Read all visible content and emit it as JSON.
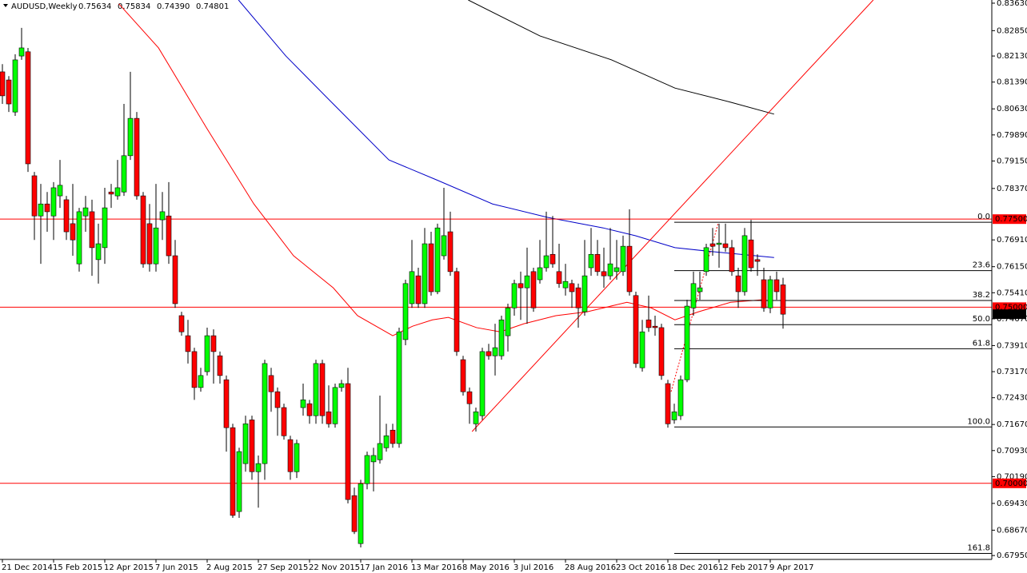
{
  "chart_data": {
    "type": "candlestick",
    "symbol": "AUDUSD,Weekly",
    "last_labels": [
      "0.75634",
      "0.75834",
      "0.74390",
      "0.74801"
    ],
    "open": [
      0.8168,
      0.8145,
      0.8054,
      0.8213,
      0.8225,
      0.7873,
      0.7759,
      0.7793,
      0.7759,
      0.7816,
      0.7805,
      0.7737,
      0.7623,
      0.7759,
      0.7771,
      0.7635,
      0.7669,
      0.7827,
      0.7816,
      0.7827,
      0.793,
      0.8036,
      0.7816,
      0.7737,
      0.7623,
      0.7748,
      0.7759,
      0.7646,
      0.7476,
      0.7419,
      0.7374,
      0.7272,
      0.7317,
      0.7419,
      0.7362,
      0.7294,
      0.7158,
      0.692,
      0.7056,
      0.718,
      0.7033,
      0.7056,
      0.7306,
      0.726,
      0.7215,
      0.7124,
      0.7033,
      0.7215,
      0.7226,
      0.7192,
      0.734,
      0.7203,
      0.7169,
      0.7272,
      0.7283,
      0.6965,
      0.6829,
      0.6999,
      0.7061,
      0.7067,
      0.7101,
      0.7151,
      0.7113,
      0.7408,
      0.751,
      0.7589,
      0.751,
      0.768,
      0.7544,
      0.7646,
      0.7714,
      0.7601,
      0.7351,
      0.726,
      0.7169,
      0.7192,
      0.7374,
      0.7362,
      0.7362,
      0.7419,
      0.7498,
      0.7567,
      0.7555,
      0.7601,
      0.7578,
      0.7612,
      0.765,
      0.7601,
      0.7555,
      0.7567,
      0.7555,
      0.7487,
      0.7612,
      0.765,
      0.7601,
      0.7589,
      0.7601,
      0.7601,
      0.7673,
      0.7533,
      0.7328,
      0.7464,
      0.7446,
      0.7442,
      0.7283,
      0.718,
      0.7192,
      0.7294,
      0.7498,
      0.7544,
      0.7601,
      0.768,
      0.7678,
      0.768,
      0.7669,
      0.7589,
      0.7544,
      0.7691,
      0.7635,
      0.7578,
      0.7498,
      0.7578,
      0.75634
    ],
    "high": [
      0.819,
      0.8156,
      0.8218,
      0.8293,
      0.8236,
      0.7884,
      0.785,
      0.7827,
      0.7855,
      0.7918,
      0.7816,
      0.785,
      0.7782,
      0.7816,
      0.7805,
      0.7737,
      0.7839,
      0.785,
      0.7918,
      0.8077,
      0.8168,
      0.8054,
      0.7827,
      0.7793,
      0.785,
      0.7827,
      0.7855,
      0.7691,
      0.7487,
      0.7464,
      0.7385,
      0.7328,
      0.7442,
      0.7437,
      0.7374,
      0.7306,
      0.7169,
      0.7101,
      0.7192,
      0.7192,
      0.7079,
      0.7351,
      0.7328,
      0.7272,
      0.7226,
      0.7135,
      0.7124,
      0.7283,
      0.7237,
      0.7351,
      0.7351,
      0.7278,
      0.7283,
      0.7294,
      0.7328,
      0.6988,
      0.701,
      0.709,
      0.7101,
      0.7249,
      0.7169,
      0.7169,
      0.7442,
      0.7578,
      0.7691,
      0.7612,
      0.7725,
      0.7714,
      0.7737,
      0.7839,
      0.7771,
      0.7612,
      0.7362,
      0.7272,
      0.7215,
      0.7385,
      0.7396,
      0.7453,
      0.7476,
      0.751,
      0.7578,
      0.7601,
      0.7669,
      0.7612,
      0.7691,
      0.7771,
      0.7759,
      0.768,
      0.7623,
      0.7578,
      0.7567,
      0.7691,
      0.7725,
      0.7691,
      0.7669,
      0.7725,
      0.7691,
      0.7703,
      0.7778,
      0.7544,
      0.7464,
      0.7533,
      0.7476,
      0.7453,
      0.7294,
      0.7226,
      0.7306,
      0.7521,
      0.7601,
      0.7601,
      0.768,
      0.7725,
      0.7737,
      0.7737,
      0.7691,
      0.7612,
      0.7725,
      0.7748,
      0.765,
      0.7612,
      0.7589,
      0.7601,
      0.75834
    ],
    "low": [
      0.8077,
      0.8054,
      0.8043,
      0.8202,
      0.7884,
      0.7691,
      0.7623,
      0.7714,
      0.7691,
      0.7782,
      0.7691,
      0.7646,
      0.7601,
      0.7714,
      0.7589,
      0.7567,
      0.7623,
      0.7782,
      0.7805,
      0.7816,
      0.7918,
      0.7805,
      0.7612,
      0.7601,
      0.7601,
      0.7691,
      0.7623,
      0.7498,
      0.7419,
      0.734,
      0.7237,
      0.726,
      0.7306,
      0.7283,
      0.7283,
      0.709,
      0.6902,
      0.6902,
      0.7033,
      0.701,
      0.6931,
      0.701,
      0.7203,
      0.7135,
      0.7124,
      0.701,
      0.7015,
      0.7192,
      0.7169,
      0.7169,
      0.7169,
      0.7158,
      0.7158,
      0.726,
      0.6943,
      0.6856,
      0.6818,
      0.6983,
      0.6977,
      0.7056,
      0.709,
      0.7101,
      0.7101,
      0.7392,
      0.7498,
      0.7498,
      0.7498,
      0.7533,
      0.7537,
      0.7635,
      0.7589,
      0.7362,
      0.7249,
      0.7169,
      0.7147,
      0.718,
      0.7351,
      0.7306,
      0.7351,
      0.7374,
      0.7476,
      0.7464,
      0.7453,
      0.7487,
      0.7567,
      0.7601,
      0.7612,
      0.7555,
      0.7533,
      0.7498,
      0.7442,
      0.7476,
      0.7589,
      0.7589,
      0.7555,
      0.7578,
      0.7578,
      0.7589,
      0.7533,
      0.7328,
      0.7317,
      0.743,
      0.7419,
      0.7294,
      0.7158,
      0.7169,
      0.718,
      0.7287,
      0.7476,
      0.7521,
      0.7589,
      0.7646,
      0.7612,
      0.7657,
      0.7589,
      0.7498,
      0.7533,
      0.7601,
      0.7589,
      0.7487,
      0.7483,
      0.7521,
      0.7439
    ],
    "close": [
      0.81,
      0.8077,
      0.8202,
      0.8236,
      0.7907,
      0.7759,
      0.7793,
      0.7771,
      0.7839,
      0.7846,
      0.7714,
      0.7691,
      0.7771,
      0.7782,
      0.7669,
      0.768,
      0.7782,
      0.7821,
      0.7839,
      0.793,
      0.8036,
      0.7816,
      0.7623,
      0.7623,
      0.7725,
      0.7771,
      0.7646,
      0.751,
      0.743,
      0.7374,
      0.7272,
      0.7306,
      0.7419,
      0.7374,
      0.7306,
      0.7158,
      0.6909,
      0.709,
      0.7169,
      0.7033,
      0.7056,
      0.734,
      0.726,
      0.7215,
      0.7135,
      0.7033,
      0.7113,
      0.7237,
      0.7192,
      0.734,
      0.7192,
      0.7169,
      0.7272,
      0.7283,
      0.6954,
      0.6863,
      0.6999,
      0.7079,
      0.7079,
      0.7113,
      0.7135,
      0.7113,
      0.743,
      0.7567,
      0.7601,
      0.751,
      0.768,
      0.7544,
      0.7725,
      0.7703,
      0.7601,
      0.7374,
      0.726,
      0.7226,
      0.7203,
      0.7374,
      0.7362,
      0.7385,
      0.7464,
      0.7498,
      0.7567,
      0.7555,
      0.7589,
      0.7498,
      0.7612,
      0.7646,
      0.7623,
      0.7567,
      0.7573,
      0.7544,
      0.7498,
      0.7589,
      0.765,
      0.7601,
      0.7589,
      0.7623,
      0.7612,
      0.7673,
      0.7544,
      0.734,
      0.743,
      0.7442,
      0.7442,
      0.7306,
      0.7169,
      0.7203,
      0.7294,
      0.7503,
      0.7567,
      0.7555,
      0.7669,
      0.7673,
      0.7682,
      0.7669,
      0.7601,
      0.7544,
      0.7703,
      0.7612,
      0.763,
      0.7498,
      0.7578,
      0.7544,
      0.74801
    ],
    "up_color": "#00ff00",
    "down_color": "#ff0000",
    "ylim": [
      0.6784,
      0.8372
    ],
    "yticks": [
      {
        "value": 0.8363,
        "label": "0.83630"
      },
      {
        "value": 0.8285,
        "label": "0.82850"
      },
      {
        "value": 0.8213,
        "label": "0.82130"
      },
      {
        "value": 0.8139,
        "label": "0.81390"
      },
      {
        "value": 0.8063,
        "label": "0.80630"
      },
      {
        "value": 0.7989,
        "label": "0.79890"
      },
      {
        "value": 0.7915,
        "label": "0.79150"
      },
      {
        "value": 0.7837,
        "label": "0.78370"
      },
      {
        "value": 0.7691,
        "label": "0.76910"
      },
      {
        "value": 0.7615,
        "label": "0.76150"
      },
      {
        "value": 0.7541,
        "label": "0.75410"
      },
      {
        "value": 0.7467,
        "label": "0.74670"
      },
      {
        "value": 0.7391,
        "label": "0.73910"
      },
      {
        "value": 0.7317,
        "label": "0.73170"
      },
      {
        "value": 0.7243,
        "label": "0.72430"
      },
      {
        "value": 0.7167,
        "label": "0.71670"
      },
      {
        "value": 0.7093,
        "label": "0.70930"
      },
      {
        "value": 0.7019,
        "label": "0.70190"
      },
      {
        "value": 0.6943,
        "label": "0.69430"
      },
      {
        "value": 0.6867,
        "label": "0.68670"
      },
      {
        "value": 0.6795,
        "label": "0.67950"
      }
    ],
    "xticks": [
      {
        "value": 0,
        "label": "21 Dec 2014"
      },
      {
        "value": 8,
        "label": "15 Feb 2015"
      },
      {
        "value": 16,
        "label": "12 Apr 2015"
      },
      {
        "value": 24,
        "label": "7 Jun 2015"
      },
      {
        "value": 32,
        "label": "2 Aug 2015"
      },
      {
        "value": 40,
        "label": "27 Sep 2015"
      },
      {
        "value": 48,
        "label": "22 Nov 2015"
      },
      {
        "value": 56,
        "label": "17 Jan 2016"
      },
      {
        "value": 64,
        "label": "13 Mar 2016"
      },
      {
        "value": 72,
        "label": "8 May 2016"
      },
      {
        "value": 80,
        "label": "3 Jul 2016"
      },
      {
        "value": 88,
        "label": "28 Aug 2016"
      },
      {
        "value": 96,
        "label": "23 Oct 2016"
      },
      {
        "value": 104,
        "label": "18 Dec 2016"
      },
      {
        "value": 112,
        "label": "12 Feb 2017"
      },
      {
        "value": 120,
        "label": "9 Apr 2017"
      }
    ],
    "levels": [
      {
        "value": 0.775,
        "label": "0.77500"
      },
      {
        "value": 0.75,
        "label": "0.75000"
      },
      {
        "value": 0.7,
        "label": "0.70000"
      }
    ],
    "level_color": "#ff0000",
    "fib": {
      "high": 0.7741,
      "low": 0.716,
      "start": 105,
      "levels": [
        {
          "value": 0,
          "label": "0.0"
        },
        23.6,
        38.2,
        {
          "value": 50,
          "label": "50.0"
        },
        61.8,
        {
          "value": 100,
          "label": "100.0"
        },
        161.8
      ]
    },
    "lines": [
      {
        "color": "#ff0000",
        "x": [
          18.2,
          24.4,
          31.9,
          39.3,
          45.5,
          51.7,
          55.5,
          61.0,
          64.1,
          67.2,
          69.7,
          74.1,
          77.8,
          81.5,
          86.5,
          91.4,
          97.6,
          101.4,
          105.1,
          108.8,
          113.8,
          118.7
        ],
        "values": [
          0.8361,
          0.8236,
          0.8009,
          0.7793,
          0.7646,
          0.7555,
          0.7476,
          0.7419,
          0.7446,
          0.7464,
          0.7471,
          0.7442,
          0.743,
          0.7453,
          0.7476,
          0.7487,
          0.7514,
          0.7498,
          0.7464,
          0.7487,
          0.7514,
          0.7521
        ]
      },
      {
        "color": "#0000c8",
        "x": [
          36.9,
          44.3,
          51.7,
          60.4,
          67.9,
          76.6,
          85.2,
          93.9,
          98.9,
          105.1,
          111.3,
          120.6
        ],
        "values": [
          0.8372,
          0.8213,
          0.8077,
          0.7918,
          0.7861,
          0.7793,
          0.7755,
          0.7725,
          0.7703,
          0.7669,
          0.7657,
          0.7641
        ]
      },
      {
        "color": "#000000",
        "x": [
          72.8,
          84.0,
          95.2,
          105.1,
          113.8,
          120.6
        ],
        "values": [
          0.8372,
          0.827,
          0.8202,
          0.8122,
          0.8082,
          0.8048
        ]
      },
      {
        "color": "#ff0000",
        "x": [
          73.4,
          136.1
        ],
        "values": [
          0.7147,
          0.8372
        ]
      },
      {
        "color": "#ff0000",
        "dashed": true,
        "x": [
          104.5,
          111.9
        ],
        "values": [
          0.726,
          0.7741
        ]
      }
    ]
  }
}
